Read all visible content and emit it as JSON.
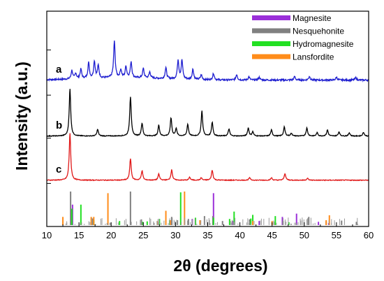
{
  "chart_data": {
    "type": "line",
    "title": "",
    "xlabel": "2θ (degrees)",
    "ylabel": "Intensity (a.u.)",
    "xlim": [
      10,
      60
    ],
    "xticks": [
      10,
      15,
      20,
      25,
      30,
      35,
      40,
      45,
      50,
      55,
      60
    ],
    "xtick_labels": [
      "10",
      "15",
      "20",
      "25",
      "30",
      "35",
      "40",
      "45",
      "50",
      "55",
      "60"
    ],
    "y_ticks_labeled": false,
    "legend": {
      "placement": "top-right",
      "entries": [
        {
          "label": "Magnesite",
          "color": "#9b30d9"
        },
        {
          "label": "Nesquehonite",
          "color": "#808080"
        },
        {
          "label": "Hydromagnesite",
          "color": "#22e022"
        },
        {
          "label": "Lansfordite",
          "color": "#ff8c1a"
        }
      ]
    },
    "series": [
      {
        "label": "a",
        "color": "#1f1fd0",
        "baseline": 0.68,
        "scale": 0.22,
        "peaks": [
          [
            13.9,
            0.18
          ],
          [
            14.5,
            0.12
          ],
          [
            15.3,
            0.2
          ],
          [
            16.5,
            0.33
          ],
          [
            17.4,
            0.36
          ],
          [
            18.0,
            0.26
          ],
          [
            20.5,
            0.78
          ],
          [
            21.5,
            0.17
          ],
          [
            22.3,
            0.24
          ],
          [
            23.1,
            0.34
          ],
          [
            25.0,
            0.2
          ],
          [
            26.0,
            0.13
          ],
          [
            28.5,
            0.23
          ],
          [
            30.4,
            0.4
          ],
          [
            31.0,
            0.4
          ],
          [
            32.7,
            0.22
          ],
          [
            34.0,
            0.1
          ],
          [
            35.9,
            0.14
          ],
          [
            39.5,
            0.12
          ],
          [
            41.4,
            0.07
          ],
          [
            43.0,
            0.06
          ],
          [
            48.5,
            0.07
          ],
          [
            50.8,
            0.08
          ],
          [
            55.0,
            0.06
          ],
          [
            58.0,
            0.05
          ]
        ]
      },
      {
        "label": "b",
        "color": "#000000",
        "baseline": 0.42,
        "scale": 0.22,
        "peaks": [
          [
            13.6,
            1.0
          ],
          [
            17.9,
            0.14
          ],
          [
            23.0,
            0.83
          ],
          [
            24.8,
            0.27
          ],
          [
            27.4,
            0.23
          ],
          [
            29.3,
            0.38
          ],
          [
            30.1,
            0.16
          ],
          [
            31.9,
            0.25
          ],
          [
            34.1,
            0.53
          ],
          [
            35.7,
            0.29
          ],
          [
            38.3,
            0.15
          ],
          [
            41.3,
            0.17
          ],
          [
            42.0,
            0.09
          ],
          [
            44.9,
            0.13
          ],
          [
            46.9,
            0.19
          ],
          [
            48.0,
            0.06
          ],
          [
            50.4,
            0.17
          ],
          [
            52.0,
            0.07
          ],
          [
            53.6,
            0.13
          ],
          [
            55.4,
            0.09
          ],
          [
            57.0,
            0.07
          ],
          [
            59.2,
            0.08
          ]
        ]
      },
      {
        "label": "c",
        "color": "#e01818",
        "baseline": 0.215,
        "scale": 0.22,
        "peaks": [
          [
            13.6,
            1.0
          ],
          [
            23.0,
            0.45
          ],
          [
            24.8,
            0.2
          ],
          [
            27.4,
            0.13
          ],
          [
            29.4,
            0.22
          ],
          [
            32.2,
            0.06
          ],
          [
            34.0,
            0.05
          ],
          [
            35.7,
            0.21
          ],
          [
            41.5,
            0.05
          ],
          [
            44.9,
            0.05
          ],
          [
            47.0,
            0.14
          ],
          [
            50.5,
            0.04
          ]
        ]
      }
    ],
    "reference_sticks": {
      "baseline": 0.0,
      "scale": 0.19,
      "series": [
        {
          "name": "Magnesite",
          "color": "#9b30d9",
          "x": [
            14.0,
            32.6,
            35.9,
            38.9,
            43.0,
            46.6,
            48.8,
            52.2,
            53.8
          ],
          "h": [
            0.5,
            0.15,
            0.78,
            0.1,
            0.1,
            0.2,
            0.28,
            0.08,
            0.05
          ]
        },
        {
          "name": "Nesquehonite",
          "color": "#808080",
          "x": [
            13.7,
            17.1,
            23.0,
            24.7,
            29.4,
            30.3,
            32.0,
            34.5,
            35.8,
            37.3,
            41.5,
            46.7,
            50.7,
            53.4,
            55.8,
            58.1
          ],
          "h": [
            0.82,
            0.16,
            0.82,
            0.14,
            0.2,
            0.12,
            0.15,
            0.22,
            0.22,
            0.1,
            0.14,
            0.1,
            0.2,
            0.09,
            0.11,
            0.08
          ]
        },
        {
          "name": "Hydromagnesite",
          "color": "#22e022",
          "x": [
            13.9,
            15.3,
            17.3,
            21.3,
            24.9,
            25.6,
            27.5,
            29.1,
            30.8,
            33.1,
            35.9,
            38.4,
            39.1,
            41.7,
            42.0,
            45.5,
            47.6
          ],
          "h": [
            0.4,
            0.5,
            0.12,
            0.1,
            0.08,
            0.09,
            0.15,
            0.12,
            0.8,
            0.18,
            0.18,
            0.15,
            0.33,
            0.16,
            0.25,
            0.22,
            0.07
          ]
        },
        {
          "name": "Lansfordite",
          "color": "#ff8c1a",
          "x": [
            12.5,
            16.9,
            17.3,
            19.5,
            27.2,
            28.5,
            29.2,
            31.4,
            33.8,
            42.0,
            45.0,
            53.4,
            53.9
          ],
          "h": [
            0.2,
            0.2,
            0.2,
            0.78,
            0.1,
            0.35,
            0.12,
            0.82,
            0.12,
            0.1,
            0.1,
            0.12,
            0.24
          ]
        }
      ]
    }
  }
}
